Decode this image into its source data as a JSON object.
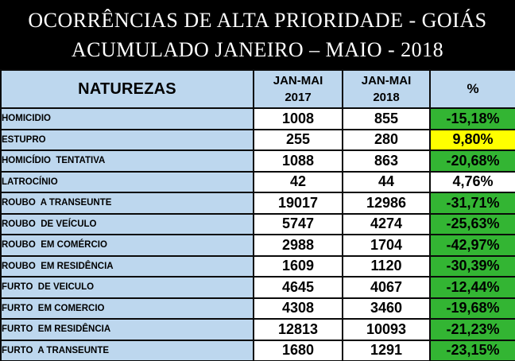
{
  "title": {
    "line1": "OCORRÊNCIAS DE ALTA PRIORIDADE - GOIÁS",
    "line2": "ACUMULADO JANEIRO – MAIO - 2018"
  },
  "table": {
    "headers": {
      "naturezas": "NATUREZAS",
      "y2017_line1": "JAN-MAI",
      "y2017_line2": "2017",
      "y2018_line1": "JAN-MAI",
      "y2018_line2": "2018",
      "percent": "%"
    }
  },
  "colors": {
    "header_bg": "#BDD7EE",
    "green": "#33B533",
    "yellow": "#FFFF00",
    "border": "#0A0A0A",
    "bg": "#000000"
  },
  "chart_data": {
    "type": "table",
    "title": "OCORRÊNCIAS DE ALTA PRIORIDADE - GOIÁS — ACUMULADO JANEIRO – MAIO - 2018",
    "columns": [
      "NATUREZAS",
      "JAN-MAI 2017",
      "JAN-MAI 2018",
      "%"
    ],
    "rows": [
      {
        "natureza": "HOMICIDIO",
        "jan_mai_2017": 1008,
        "jan_mai_2018": 855,
        "pct": "-15,18%",
        "pct_color": "green"
      },
      {
        "natureza": "ESTUPRO",
        "jan_mai_2017": 255,
        "jan_mai_2018": 280,
        "pct": "9,80%",
        "pct_color": "yellow"
      },
      {
        "natureza": "HOMICÍDIO  TENTATIVA",
        "jan_mai_2017": 1088,
        "jan_mai_2018": 863,
        "pct": "-20,68%",
        "pct_color": "green"
      },
      {
        "natureza": "LATROCÍNIO",
        "jan_mai_2017": 42,
        "jan_mai_2018": 44,
        "pct": "4,76%",
        "pct_color": "white"
      },
      {
        "natureza": "ROUBO  A TRANSEUNTE",
        "jan_mai_2017": 19017,
        "jan_mai_2018": 12986,
        "pct": "-31,71%",
        "pct_color": "green"
      },
      {
        "natureza": "ROUBO  DE VEÍCULO",
        "jan_mai_2017": 5747,
        "jan_mai_2018": 4274,
        "pct": "-25,63%",
        "pct_color": "green"
      },
      {
        "natureza": "ROUBO  EM COMÉRCIO",
        "jan_mai_2017": 2988,
        "jan_mai_2018": 1704,
        "pct": "-42,97%",
        "pct_color": "green"
      },
      {
        "natureza": "ROUBO  EM RESIDÊNCIA",
        "jan_mai_2017": 1609,
        "jan_mai_2018": 1120,
        "pct": "-30,39%",
        "pct_color": "green"
      },
      {
        "natureza": "FURTO  DE VEICULO",
        "jan_mai_2017": 4645,
        "jan_mai_2018": 4067,
        "pct": "-12,44%",
        "pct_color": "green"
      },
      {
        "natureza": "FURTO  EM COMERCIO",
        "jan_mai_2017": 4308,
        "jan_mai_2018": 3460,
        "pct": "-19,68%",
        "pct_color": "green"
      },
      {
        "natureza": "FURTO  EM RESIDÊNCIA",
        "jan_mai_2017": 12813,
        "jan_mai_2018": 10093,
        "pct": "-21,23%",
        "pct_color": "green"
      },
      {
        "natureza": "FURTO  A TRANSEUNTE",
        "jan_mai_2017": 1680,
        "jan_mai_2018": 1291,
        "pct": "-23,15%",
        "pct_color": "green"
      }
    ]
  }
}
